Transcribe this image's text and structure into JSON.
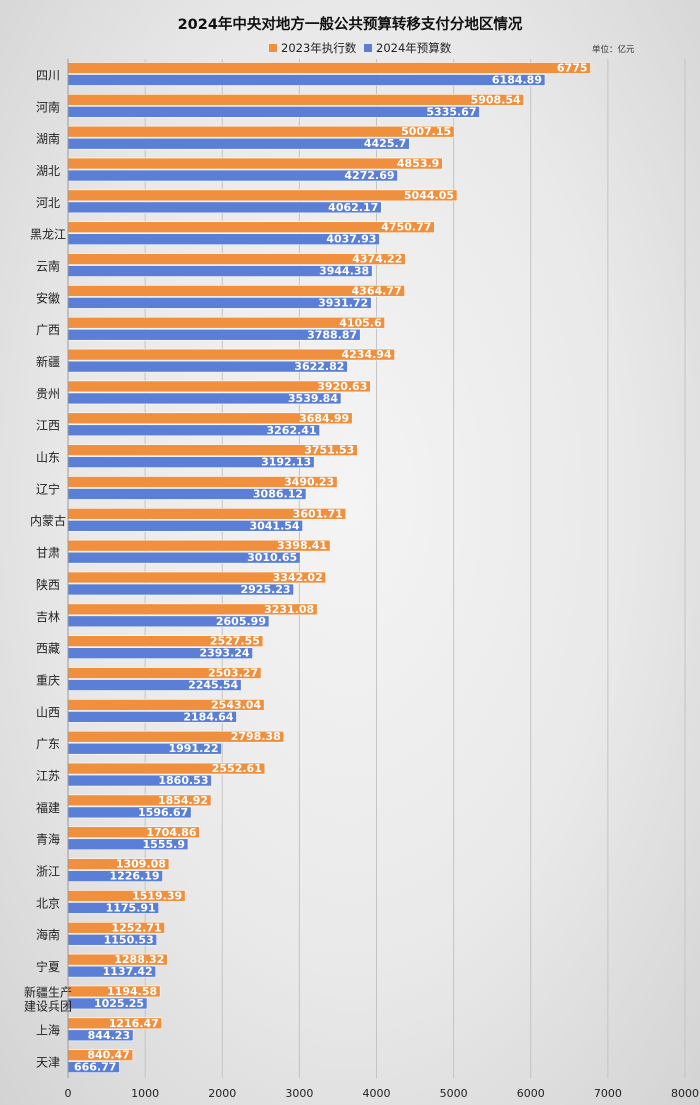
{
  "chart_data": {
    "type": "bar",
    "orientation": "horizontal",
    "title": "2024年中央对地方一般公共预算转移支付分地区情况",
    "unit_label": "单位：亿元",
    "legend_position": "top",
    "grid": true,
    "xlim": [
      0,
      8000
    ],
    "x_ticks": [
      0,
      1000,
      2000,
      3000,
      4000,
      5000,
      6000,
      7000,
      8000
    ],
    "categories": [
      "四川",
      "河南",
      "湖南",
      "湖北",
      "河北",
      "黑龙江",
      "云南",
      "安徽",
      "广西",
      "新疆",
      "贵州",
      "江西",
      "山东",
      "辽宁",
      "内蒙古",
      "甘肃",
      "陕西",
      "吉林",
      "西藏",
      "重庆",
      "山西",
      "广东",
      "江苏",
      "福建",
      "青海",
      "浙江",
      "北京",
      "海南",
      "宁夏",
      "新疆生产\n建设兵团",
      "上海",
      "天津"
    ],
    "series": [
      {
        "name": "2023年执行数",
        "color": "#f0903f",
        "values": [
          6775,
          5908.54,
          5007.15,
          4853.9,
          5044.05,
          4750.77,
          4374.22,
          4364.77,
          4105.6,
          4234.94,
          3920.63,
          3684.99,
          3751.53,
          3490.23,
          3601.71,
          3398.41,
          3342.02,
          3231.08,
          2527.55,
          2503.27,
          2543.04,
          2798.38,
          2552.61,
          1854.92,
          1704.86,
          1309.08,
          1519.39,
          1252.71,
          1288.32,
          1194.58,
          1216.47,
          840.47
        ]
      },
      {
        "name": "2024年预算数",
        "color": "#5b7fd6",
        "values": [
          6184.89,
          5335.67,
          4425.7,
          4272.69,
          4062.17,
          4037.93,
          3944.38,
          3931.72,
          3788.87,
          3622.82,
          3539.84,
          3262.41,
          3192.13,
          3086.12,
          3041.54,
          3010.65,
          2925.23,
          2605.99,
          2393.24,
          2245.54,
          2184.64,
          1991.22,
          1860.53,
          1596.67,
          1555.9,
          1226.19,
          1175.91,
          1150.53,
          1137.42,
          1025.25,
          844.23,
          666.77
        ]
      }
    ]
  }
}
